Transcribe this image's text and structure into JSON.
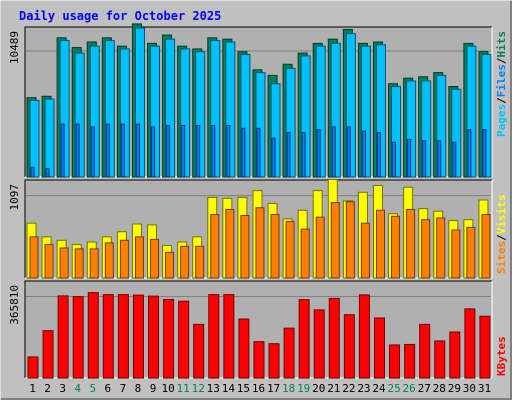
{
  "colors": {
    "background": "#C0C0C0",
    "panel": "#B0B0B0",
    "title": "#0000FF",
    "axis_text": "#000000",
    "weekend_day": "#00805C",
    "pages": "#00C0FF",
    "files": "#0080FF",
    "hits": "#00805C",
    "visits": "#FFFF00",
    "sites": "#FF8000",
    "kbytes": "#FF0000"
  },
  "chart_data": [
    {
      "type": "bar",
      "title": "Daily usage for October 2025",
      "categories": [
        "1",
        "2",
        "3",
        "4",
        "5",
        "6",
        "7",
        "8",
        "9",
        "10",
        "11",
        "12",
        "13",
        "14",
        "15",
        "16",
        "17",
        "18",
        "19",
        "20",
        "21",
        "22",
        "23",
        "24",
        "25",
        "26",
        "27",
        "28",
        "29",
        "30",
        "31"
      ],
      "weekend_days": [
        "4",
        "5",
        "11",
        "12",
        "18",
        "19",
        "25",
        "26"
      ],
      "y_label_max": "10489",
      "ylim": [
        0,
        10489
      ],
      "legend": [
        "Pages",
        "Files",
        "Hits"
      ],
      "legend_placement": "right",
      "series": [
        {
          "name": "Hits",
          "values": [
            5700,
            5800,
            10000,
            9300,
            9700,
            10000,
            9400,
            11000,
            9600,
            10200,
            9400,
            9200,
            10000,
            9900,
            9000,
            7700,
            7300,
            8100,
            8900,
            9600,
            9900,
            10600,
            9600,
            9700,
            6700,
            7100,
            7200,
            7500,
            6500,
            9600,
            9000
          ]
        },
        {
          "name": "Files",
          "values": [
            5500,
            5600,
            9800,
            8900,
            9400,
            9800,
            9200,
            10700,
            9400,
            9900,
            9200,
            9000,
            9800,
            9700,
            8800,
            7500,
            6700,
            7800,
            8700,
            9400,
            9600,
            10300,
            9400,
            9500,
            6500,
            6900,
            6900,
            7300,
            6300,
            9400,
            8800
          ]
        },
        {
          "name": "Pages",
          "values": [
            700,
            600,
            3800,
            3800,
            3600,
            3800,
            3800,
            3800,
            3600,
            3700,
            3700,
            3700,
            3700,
            3700,
            3500,
            3500,
            2800,
            3200,
            3200,
            3400,
            3600,
            3600,
            3300,
            3200,
            2500,
            2700,
            2600,
            2600,
            2500,
            3400,
            3400
          ]
        }
      ]
    },
    {
      "type": "bar",
      "categories": [
        "1",
        "2",
        "3",
        "4",
        "5",
        "6",
        "7",
        "8",
        "9",
        "10",
        "11",
        "12",
        "13",
        "14",
        "15",
        "16",
        "17",
        "18",
        "19",
        "20",
        "21",
        "22",
        "23",
        "24",
        "25",
        "26",
        "27",
        "28",
        "29",
        "30",
        "31"
      ],
      "y_label_max": "1097",
      "ylim": [
        0,
        1097
      ],
      "legend": [
        "Sites",
        "Visits"
      ],
      "legend_placement": "right",
      "series": [
        {
          "name": "Visits",
          "values": [
            640,
            480,
            440,
            390,
            420,
            480,
            540,
            630,
            620,
            380,
            420,
            480,
            940,
            930,
            940,
            1020,
            870,
            690,
            790,
            1020,
            1150,
            900,
            1000,
            1080,
            750,
            1060,
            810,
            780,
            670,
            680,
            910
          ]
        },
        {
          "name": "Sites",
          "values": [
            480,
            390,
            350,
            340,
            340,
            410,
            440,
            480,
            450,
            300,
            370,
            370,
            740,
            800,
            730,
            820,
            740,
            660,
            570,
            710,
            880,
            890,
            640,
            790,
            720,
            800,
            680,
            700,
            560,
            590,
            740
          ]
        }
      ]
    },
    {
      "type": "bar",
      "categories": [
        "1",
        "2",
        "3",
        "4",
        "5",
        "6",
        "7",
        "8",
        "9",
        "10",
        "11",
        "12",
        "13",
        "14",
        "15",
        "16",
        "17",
        "18",
        "19",
        "20",
        "21",
        "22",
        "23",
        "24",
        "25",
        "26",
        "27",
        "28",
        "29",
        "30",
        "31"
      ],
      "y_label_max": "365810",
      "ylim": [
        0,
        365810
      ],
      "legend": [
        "KBytes"
      ],
      "legend_placement": "right",
      "series": [
        {
          "name": "KBytes",
          "values": [
            83000,
            186000,
            323000,
            320000,
            336000,
            328000,
            328000,
            326000,
            322000,
            309000,
            302000,
            211000,
            328000,
            328000,
            232000,
            143000,
            135000,
            196000,
            308000,
            268000,
            313000,
            249000,
            327000,
            236000,
            130000,
            132000,
            211000,
            146000,
            181000,
            272000,
            243000
          ]
        }
      ]
    }
  ]
}
